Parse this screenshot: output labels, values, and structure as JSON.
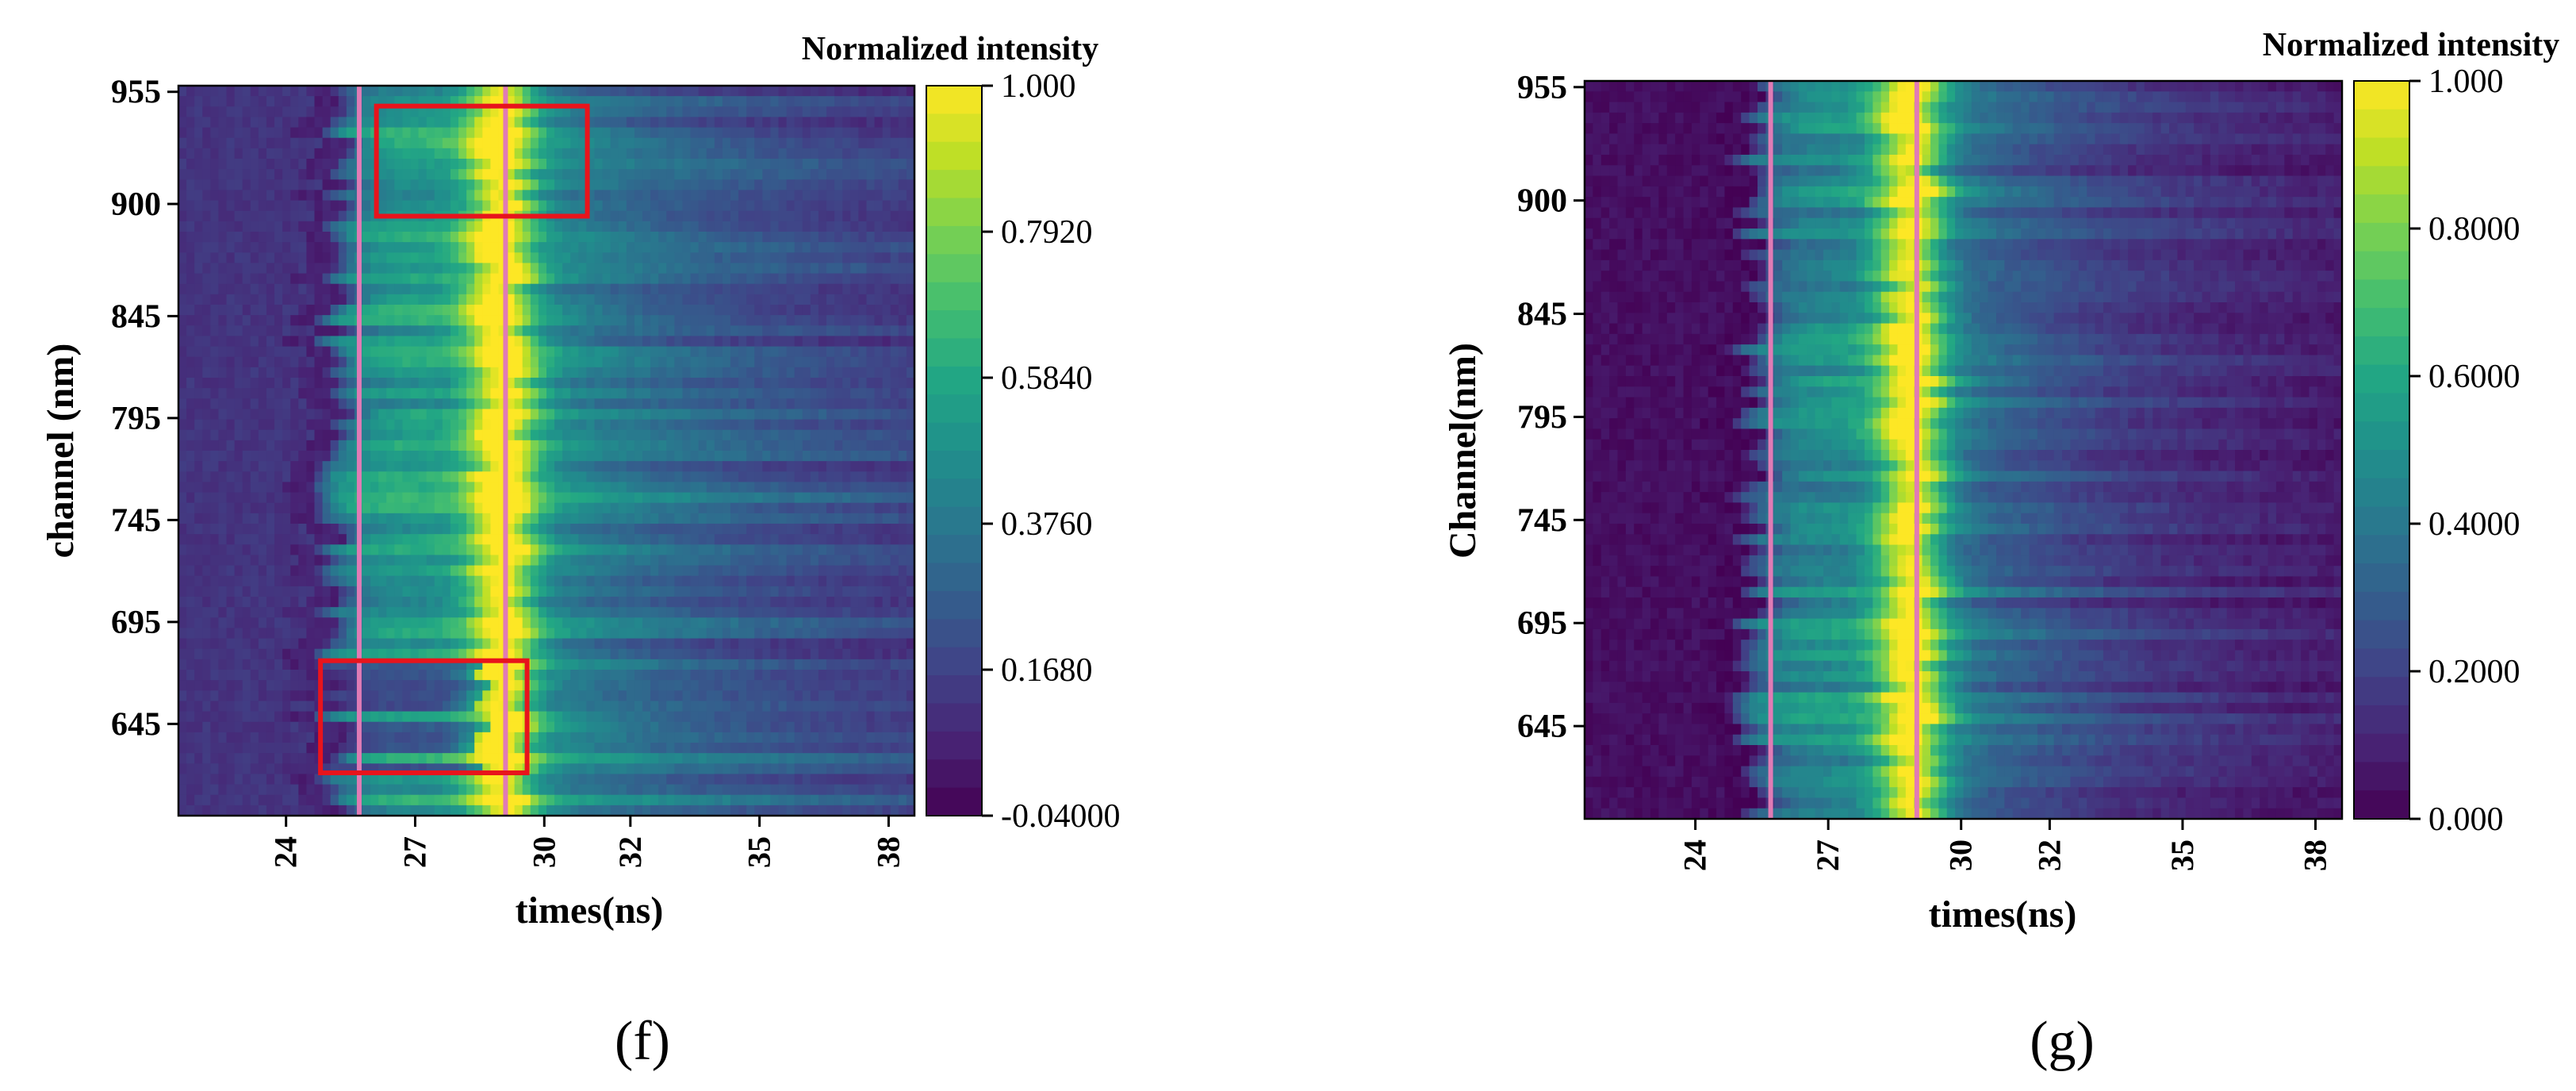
{
  "chart_data": [
    {
      "type": "heatmap",
      "panel_label": "(f)",
      "title": "Normalized intensity",
      "xlabel": "times(ns)",
      "ylabel": "channel (nm)",
      "x_ticks": [
        "24",
        "27",
        "30",
        "32",
        "35",
        "38"
      ],
      "y_ticks": [
        "955",
        "900",
        "845",
        "795",
        "745",
        "695",
        "645"
      ],
      "colorbar_ticks": [
        "1.000",
        "0.7920",
        "0.5840",
        "0.3760",
        "0.1680",
        "-0.04000"
      ],
      "colorbar_range": [
        -0.04,
        1.0
      ],
      "colormap": "viridis",
      "vertical_lines_ns": [
        25.7,
        29.1
      ],
      "vertical_line_color": "#e07bb5",
      "highlight_color": "#e8141c",
      "highlight_boxes": [
        {
          "t_range": [
            26.1,
            31.0
          ],
          "channel_range": [
            894,
            948
          ]
        },
        {
          "t_range": [
            24.8,
            29.6
          ],
          "channel_range": [
            621,
            676
          ]
        }
      ]
    },
    {
      "type": "heatmap",
      "panel_label": "(g)",
      "title": "Normalized intensity",
      "xlabel": "times(ns)",
      "ylabel": "Channel(nm)",
      "x_ticks": [
        "24",
        "27",
        "30",
        "32",
        "35",
        "38"
      ],
      "y_ticks": [
        "955",
        "900",
        "845",
        "795",
        "745",
        "695",
        "645"
      ],
      "colorbar_ticks": [
        "1.000",
        "0.8000",
        "0.6000",
        "0.4000",
        "0.2000",
        "0.000"
      ],
      "colorbar_range": [
        0.0,
        1.0
      ],
      "colormap": "viridis",
      "vertical_lines_ns": [
        25.7,
        29.0
      ],
      "vertical_line_color": "#e07bb5",
      "highlight_color": "#e8141c",
      "highlight_boxes": []
    }
  ]
}
